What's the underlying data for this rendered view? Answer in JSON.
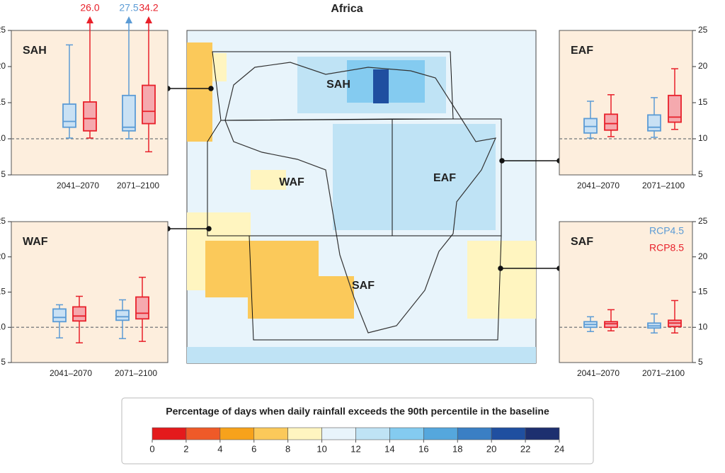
{
  "title": "Africa",
  "legend": {
    "names": [
      "RCP4.5",
      "RCP8.5"
    ],
    "colors": [
      "#5b9bd5",
      "#e8202a"
    ],
    "fills": [
      "#c9e1f4",
      "#f5a9ae"
    ]
  },
  "chart_data": [
    {
      "type": "box",
      "title": "SAH",
      "categories": [
        "2041–2070",
        "2071–2100"
      ],
      "ylim": [
        5,
        25
      ],
      "yticks": [
        5,
        10,
        15,
        20,
        25
      ],
      "hline": 10,
      "axis_side": "left",
      "series": [
        {
          "low": [
            10.1,
            10
          ],
          "q1": [
            11.6,
            11.1
          ],
          "median": [
            12.4,
            11.6
          ],
          "q3": [
            14.8,
            16
          ],
          "high": [
            23,
            27.5
          ],
          "high_labels": [
            null,
            "27.5"
          ]
        },
        {
          "low": [
            10.1,
            8.2
          ],
          "q1": [
            11.1,
            12.1
          ],
          "median": [
            12.8,
            13.8
          ],
          "q3": [
            15.1,
            17.4
          ],
          "high": [
            26.0,
            34.2
          ],
          "high_labels": [
            "26.0",
            "34.2"
          ]
        }
      ]
    },
    {
      "type": "box",
      "title": "EAF",
      "categories": [
        "2041–2070",
        "2071–2100"
      ],
      "ylim": [
        5,
        25
      ],
      "yticks": [
        5,
        10,
        15,
        20,
        25
      ],
      "hline": 10,
      "axis_side": "right",
      "series": [
        {
          "low": [
            10.1,
            10.2
          ],
          "q1": [
            10.8,
            11.1
          ],
          "median": [
            11.7,
            11.6
          ],
          "q3": [
            12.8,
            13.3
          ],
          "high": [
            15.2,
            15.7
          ]
        },
        {
          "low": [
            10.3,
            11.3
          ],
          "q1": [
            11.2,
            12.3
          ],
          "median": [
            12.1,
            13.0
          ],
          "q3": [
            13.4,
            16.0
          ],
          "high": [
            16.1,
            19.7
          ]
        }
      ]
    },
    {
      "type": "box",
      "title": "WAF",
      "categories": [
        "2041–2070",
        "2071–2100"
      ],
      "ylim": [
        5,
        25
      ],
      "yticks": [
        5,
        10,
        15,
        20,
        25
      ],
      "hline": 10,
      "axis_side": "left",
      "series": [
        {
          "low": [
            8.5,
            8.4
          ],
          "q1": [
            10.8,
            11.0
          ],
          "median": [
            11.4,
            11.5
          ],
          "q3": [
            12.6,
            12.4
          ],
          "high": [
            13.2,
            13.9
          ]
        },
        {
          "low": [
            7.8,
            8.0
          ],
          "q1": [
            10.9,
            11.2
          ],
          "median": [
            11.6,
            12.0
          ],
          "q3": [
            12.9,
            14.3
          ],
          "high": [
            14.4,
            17.1
          ]
        }
      ]
    },
    {
      "type": "box",
      "title": "SAF",
      "categories": [
        "2041–2070",
        "2071–2100"
      ],
      "ylim": [
        5,
        25
      ],
      "yticks": [
        5,
        10,
        15,
        20,
        25
      ],
      "hline": 10,
      "axis_side": "right",
      "show_legend": true,
      "series": [
        {
          "low": [
            9.4,
            9.2
          ],
          "q1": [
            10.0,
            9.9
          ],
          "median": [
            10.4,
            10.2
          ],
          "q3": [
            10.8,
            10.6
          ],
          "high": [
            11.5,
            11.9
          ]
        },
        {
          "low": [
            9.5,
            9.2
          ],
          "q1": [
            10.0,
            10.1
          ],
          "median": [
            10.5,
            10.6
          ],
          "q3": [
            10.8,
            11.0
          ],
          "high": [
            12.5,
            13.8
          ]
        }
      ]
    }
  ],
  "map": {
    "regions": [
      "SAH",
      "WAF",
      "EAF",
      "SAF"
    ]
  },
  "colorbar": {
    "title": "Percentage of days when daily rainfall exceeds the 90th percentile in the baseline",
    "ticks": [
      0,
      2,
      4,
      6,
      8,
      10,
      12,
      14,
      16,
      18,
      20,
      22,
      24
    ],
    "colors": [
      "#e41a1c",
      "#ef5a28",
      "#f7a21b",
      "#fbc95a",
      "#fff5c0",
      "#e8f4fb",
      "#bfe3f5",
      "#84cbf0",
      "#55a7dd",
      "#3a7fc4",
      "#1f4fa0",
      "#1d2f6f"
    ]
  }
}
